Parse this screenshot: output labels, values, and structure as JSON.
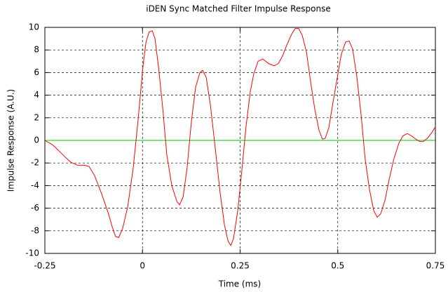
{
  "chart_data": {
    "type": "line",
    "title": "iDEN Sync Matched Filter Impulse Response",
    "x_label": "Time (ms)",
    "y_label": "Impulse Response (A.U.)",
    "x": [
      -0.25,
      -0.23,
      -0.203,
      -0.185,
      -0.167,
      -0.149,
      -0.137,
      -0.123,
      -0.105,
      -0.087,
      -0.078,
      -0.069,
      -0.061,
      -0.051,
      -0.038,
      -0.024,
      -0.011,
      0.001,
      0.009,
      0.017,
      0.025,
      0.032,
      0.041,
      0.052,
      0.062,
      0.075,
      0.088,
      0.095,
      0.104,
      0.114,
      0.125,
      0.136,
      0.147,
      0.154,
      0.163,
      0.174,
      0.186,
      0.199,
      0.21,
      0.219,
      0.226,
      0.233,
      0.244,
      0.254,
      0.265,
      0.276,
      0.285,
      0.296,
      0.308,
      0.323,
      0.337,
      0.348,
      0.359,
      0.369,
      0.382,
      0.391,
      0.4,
      0.409,
      0.42,
      0.43,
      0.441,
      0.452,
      0.461,
      0.468,
      0.477,
      0.488,
      0.499,
      0.509,
      0.52,
      0.529,
      0.538,
      0.549,
      0.56,
      0.57,
      0.581,
      0.592,
      0.601,
      0.61,
      0.621,
      0.632,
      0.644,
      0.657,
      0.667,
      0.678,
      0.689,
      0.7,
      0.71,
      0.719,
      0.73,
      0.741,
      0.75
    ],
    "values": [
      0,
      -0.4,
      -1.3,
      -1.9,
      -2.2,
      -2.2,
      -2.3,
      -3.1,
      -4.7,
      -6.5,
      -7.6,
      -8.5,
      -8.6,
      -7.8,
      -5.9,
      -2.5,
      1.9,
      6.5,
      8.7,
      9.6,
      9.7,
      9.0,
      6.5,
      2.8,
      -1.2,
      -4.0,
      -5.4,
      -5.7,
      -5.0,
      -2.5,
      1.6,
      4.7,
      6.0,
      6.2,
      5.6,
      3.1,
      -0.6,
      -4.7,
      -7.5,
      -8.9,
      -9.3,
      -8.7,
      -6.2,
      -2.8,
      1.2,
      4.3,
      5.9,
      7.0,
      7.2,
      6.8,
      6.6,
      6.8,
      7.5,
      8.4,
      9.4,
      9.9,
      9.9,
      9.3,
      7.8,
      5.3,
      2.8,
      0.9,
      0.1,
      0.2,
      1.1,
      3.4,
      5.6,
      7.6,
      8.7,
      8.8,
      8.1,
      5.6,
      2.2,
      -1.6,
      -4.3,
      -6.2,
      -6.8,
      -6.5,
      -5.3,
      -3.4,
      -1.6,
      -0.2,
      0.4,
      0.6,
      0.4,
      0.1,
      -0.1,
      -0.1,
      0.2,
      0.7,
      1.2
    ],
    "color": "#ff0000",
    "zero_line_color": "#00cc00",
    "xlim": [
      -0.25,
      0.75
    ],
    "xticks": [
      -0.25,
      0,
      0.25,
      0.5,
      0.75
    ],
    "ylim": [
      -10,
      10
    ],
    "yticks": [
      -10,
      -8,
      -6,
      -4,
      -2,
      0,
      2,
      4,
      6,
      8,
      10
    ],
    "grid": true
  }
}
